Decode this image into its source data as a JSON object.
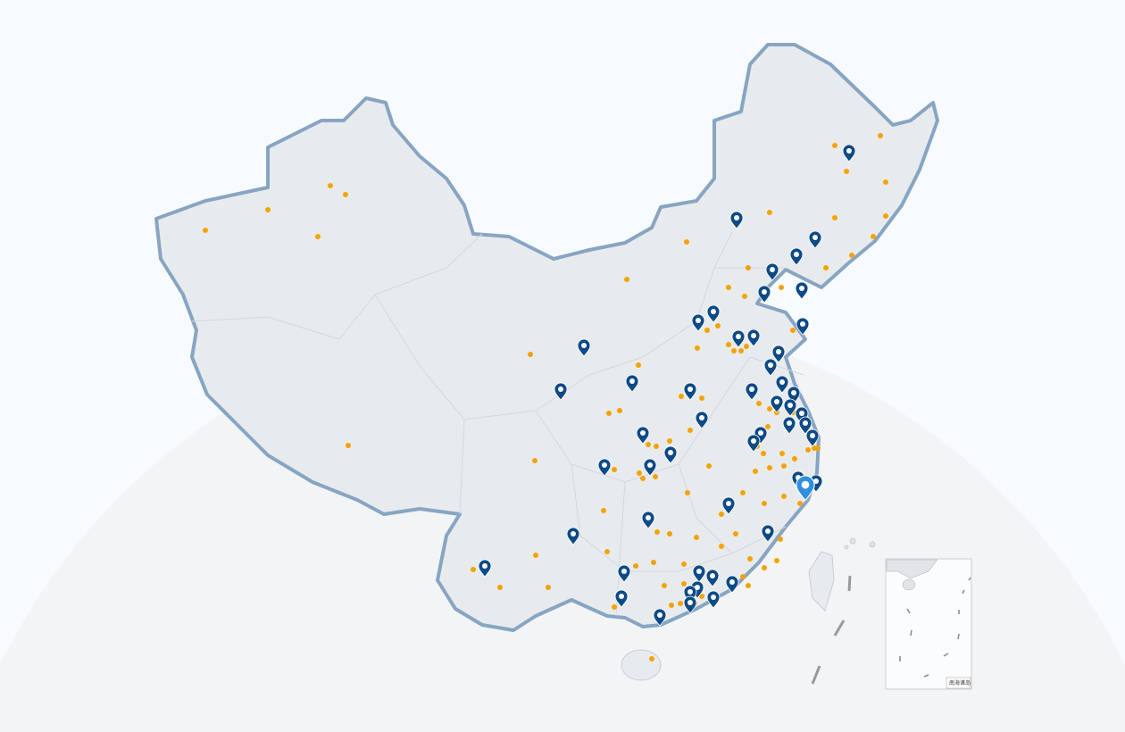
{
  "map": {
    "region": "China",
    "colors": {
      "background": "#f7fbfd",
      "halo": "#f3f4f6",
      "land_fill": "#e8ebee",
      "border": "#87a5c3",
      "province_lines": "#d3d7dc",
      "pin": "#0d4a86",
      "pin_highlight": "#2f8fe0",
      "dot": "#f5a300"
    },
    "icons": {
      "pin": "map-pin-icon",
      "dot": "location-dot"
    },
    "inset": {
      "label": "南海诸岛"
    }
  }
}
